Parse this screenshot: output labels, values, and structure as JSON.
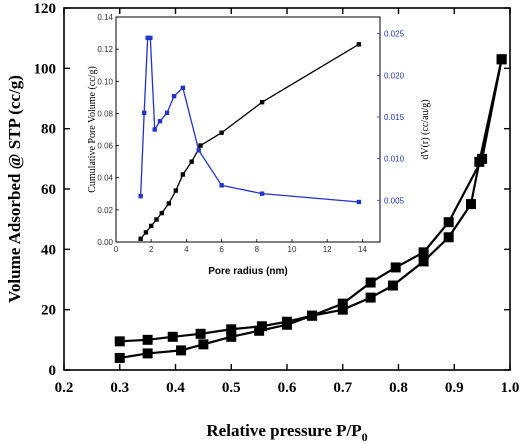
{
  "chart_data": [
    {
      "type": "line",
      "title": "",
      "xlabel": "Relative pressure P/P",
      "xlabel_sub": "0",
      "ylabel": "Volume Adsorbed @ STP (cc/g)",
      "xlim": [
        0.2,
        1.0
      ],
      "ylim": [
        0,
        120
      ],
      "xticks": [
        "0.2",
        "0.3",
        "0.4",
        "0.5",
        "0.6",
        "0.7",
        "0.8",
        "0.9",
        "1.0"
      ],
      "yticks": [
        "0",
        "20",
        "40",
        "60",
        "80",
        "100",
        "120"
      ],
      "grid": false,
      "series": [
        {
          "color": "#000000",
          "marker": "square",
          "x": [
            0.3,
            0.35,
            0.41,
            0.45,
            0.5,
            0.55,
            0.6,
            0.645,
            0.7,
            0.75,
            0.79,
            0.845,
            0.89,
            0.93,
            0.945,
            0.985
          ],
          "y": [
            4,
            5.5,
            6.5,
            8.5,
            11,
            13,
            15,
            18,
            20,
            24,
            28,
            36,
            44,
            55,
            69,
            103
          ]
        },
        {
          "color": "#000000",
          "marker": "square",
          "x": [
            0.3,
            0.35,
            0.395,
            0.445,
            0.5,
            0.555,
            0.6,
            0.645,
            0.7,
            0.75,
            0.795,
            0.845,
            0.89,
            0.95,
            0.985
          ],
          "y": [
            9.5,
            10,
            11,
            12,
            13.5,
            14.5,
            16,
            18,
            22,
            29,
            34,
            39,
            49,
            70,
            103
          ]
        }
      ]
    },
    {
      "type": "line",
      "title": "",
      "xlabel": "Pore radius (nm)",
      "ylabel_left": "Cumulative Pore Volume (cc/g)",
      "ylabel_right": "dV(r) (cc/au/g)",
      "xlim": [
        0,
        15
      ],
      "ylim_left": [
        0,
        0.14
      ],
      "ylim_right": [
        0,
        0.027
      ],
      "xticks": [
        "0",
        "2",
        "4",
        "6",
        "8",
        "10",
        "12",
        "14"
      ],
      "yticks_left": [
        "0.00",
        "0.02",
        "0.04",
        "0.06",
        "0.08",
        "0.10",
        "0.12",
        "0.14"
      ],
      "yticks_right": [
        "0.005",
        "0.010",
        "0.015",
        "0.020",
        "0.025"
      ],
      "grid": false,
      "series": [
        {
          "axis": "left",
          "color": "#000000",
          "marker": "square",
          "x": [
            1.4,
            1.7,
            2.0,
            2.3,
            2.6,
            3.0,
            3.4,
            3.8,
            4.3,
            4.8,
            6.0,
            8.3,
            13.8
          ],
          "y": [
            0.002,
            0.006,
            0.01,
            0.014,
            0.018,
            0.024,
            0.032,
            0.042,
            0.05,
            0.06,
            0.068,
            0.087,
            0.123
          ]
        },
        {
          "axis": "right",
          "color": "#2233cc",
          "marker": "square",
          "x": [
            1.4,
            1.6,
            1.8,
            1.95,
            2.2,
            2.5,
            2.9,
            3.3,
            3.8,
            4.7,
            6.0,
            8.3,
            13.8
          ],
          "y": [
            0.0055,
            0.0155,
            0.0245,
            0.0245,
            0.0135,
            0.0145,
            0.0155,
            0.0175,
            0.0185,
            0.011,
            0.0068,
            0.0058,
            0.0048
          ]
        }
      ]
    }
  ]
}
